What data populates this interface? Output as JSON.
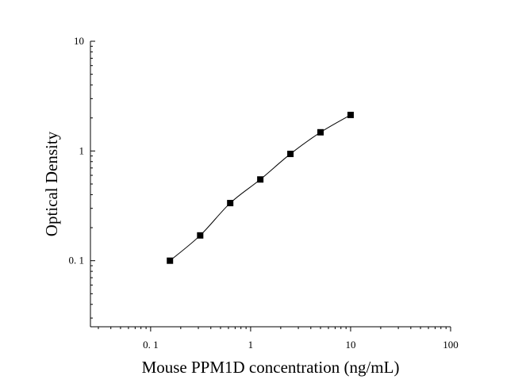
{
  "chart_data": {
    "type": "scatter",
    "title": "",
    "xlabel": "Mouse PPM1D concentration (ng/mL)",
    "ylabel": "Optical Density",
    "x_scale": "log",
    "y_scale": "log",
    "xlim": [
      0.025,
      100
    ],
    "ylim": [
      0.025,
      10
    ],
    "x_ticks": [
      0.1,
      1,
      10,
      100
    ],
    "x_tick_labels": [
      "0. 1",
      "1",
      "10",
      "100"
    ],
    "y_ticks": [
      0.1,
      1,
      10
    ],
    "y_tick_labels": [
      "0. 1",
      "1",
      "10"
    ],
    "grid": false,
    "legend": "none",
    "series": [
      {
        "x": [
          0.156,
          0.313,
          0.625,
          1.25,
          2.5,
          5,
          10
        ],
        "y": [
          0.1,
          0.17,
          0.335,
          0.55,
          0.94,
          1.48,
          2.13
        ],
        "marker": "square",
        "fit_curve": true,
        "color": "#000000"
      }
    ]
  }
}
